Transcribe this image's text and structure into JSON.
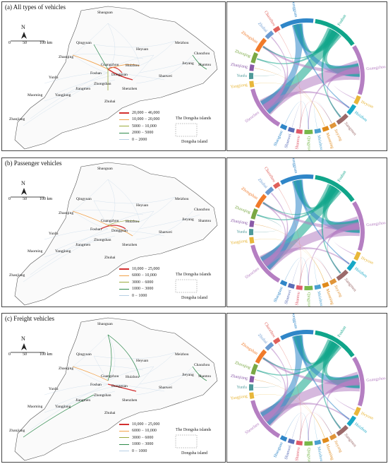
{
  "colors": {
    "red": "#d32f2f",
    "orange": "#f2a24a",
    "olive": "#9aaa3c",
    "green": "#2e8a4a",
    "lightblue": "#b7d0e4",
    "teal": "#10a58a",
    "purple": "#b57fc2",
    "blue": "#2f86c8"
  },
  "panels": [
    {
      "title": "(a) All types of vehicles",
      "legend": [
        "20,000 − 46,000",
        "10,000 − 20,000",
        "5000 − 10,000",
        "2000 − 5000",
        "0 − 2000"
      ]
    },
    {
      "title": "(b) Passenger vehicles",
      "legend": [
        "10,000 − 25,000",
        "6000 − 10,000",
        "3000 − 6000",
        "1000 − 3000",
        "0 − 1000"
      ]
    },
    {
      "title": "(c) Freight vehicles",
      "legend": [
        "10,000 − 25,000",
        "6000 − 10,000",
        "3000 − 6000",
        "1000 − 3000",
        "0 − 1000"
      ]
    }
  ],
  "map_text": {
    "north": "N",
    "scale": [
      "0",
      "50",
      "100 km"
    ],
    "dongsha_islands": "The Dongsha islands",
    "dongsha_island": "Dongsha island"
  },
  "cities": [
    "Shaoguan",
    "Qingyuan",
    "Heyuan",
    "Meizhou",
    "Chaozhou",
    "Shantou",
    "Jieyang",
    "Zhaoqing",
    "Guangzhou",
    "Huizhou",
    "Foshan",
    "Dongguan",
    "Shanwei",
    "Yunfu",
    "Jiangmen",
    "Zhongshan",
    "Shenzhen",
    "Zhuhai",
    "Maoming",
    "Yangjiang",
    "Zhanjiang"
  ],
  "chord_labels": [
    "Foshan",
    "Guangzhou",
    "Heyuan",
    "Huizhou",
    "Jiangmen",
    "Jieyang",
    "Maoming",
    "Meizhou",
    "Qingyuan",
    "Shantou",
    "Shanwei",
    "Shaoguan",
    "Shenzhen",
    "Yangjiang",
    "Yunfu",
    "Zhanjiang",
    "Zhaoqing",
    "Zhongshan",
    "Zhuhai",
    "Chaozhou",
    "Dongguan"
  ]
}
